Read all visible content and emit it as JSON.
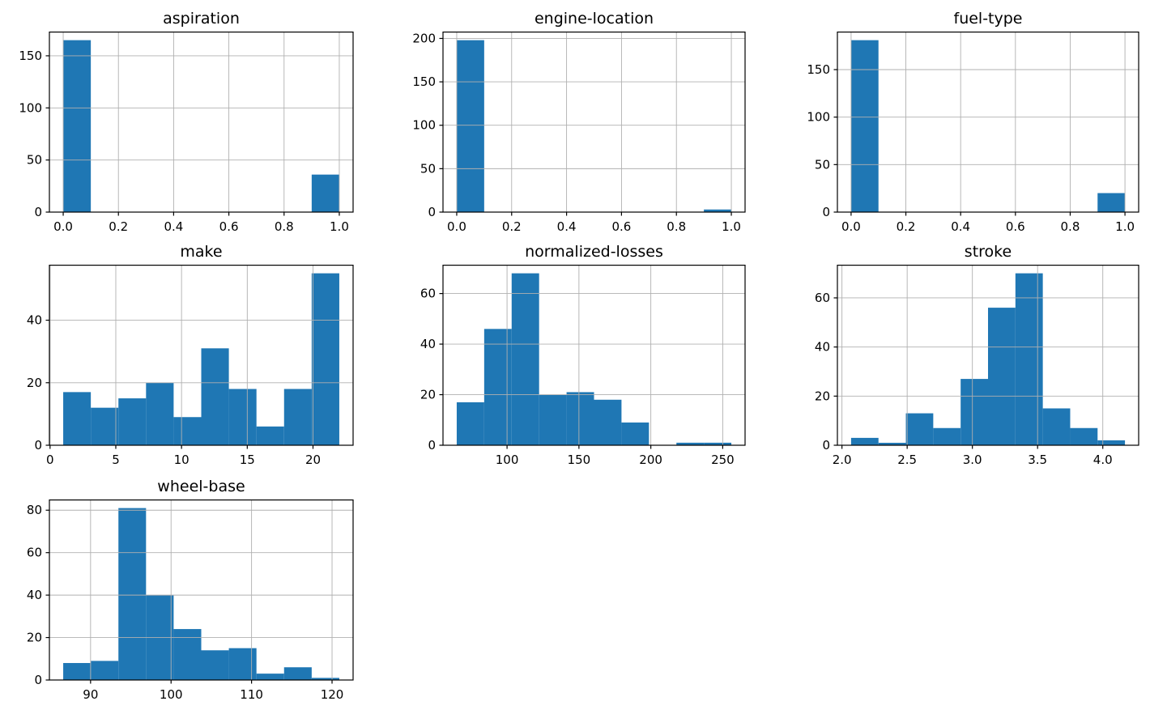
{
  "figure": {
    "background": "#ffffff",
    "bar_color": "#1f77b4",
    "grid_color": "#b0b0b0",
    "axis_color": "#000000",
    "text_color": "#000000"
  },
  "chart_data": [
    {
      "type": "histogram",
      "title": "aspiration",
      "bin_start": 0.0,
      "bin_width": 0.1,
      "counts": [
        165,
        0,
        0,
        0,
        0,
        0,
        0,
        0,
        0,
        36
      ],
      "xlim": [
        -0.05,
        1.05
      ],
      "ylim": [
        0,
        173.25
      ],
      "xticks": [
        0.0,
        0.2,
        0.4,
        0.6,
        0.8,
        1.0
      ],
      "xtick_labels": [
        "0.0",
        "0.2",
        "0.4",
        "0.6",
        "0.8",
        "1.0"
      ],
      "yticks": [
        0,
        50,
        100,
        150
      ],
      "ytick_labels": [
        "0",
        "50",
        "100",
        "150"
      ],
      "grid": true,
      "legend": "none"
    },
    {
      "type": "histogram",
      "title": "engine-location",
      "bin_start": 0.0,
      "bin_width": 0.1,
      "counts": [
        198,
        0,
        0,
        0,
        0,
        0,
        0,
        0,
        0,
        3
      ],
      "xlim": [
        -0.05,
        1.05
      ],
      "ylim": [
        0,
        207.9
      ],
      "xticks": [
        0.0,
        0.2,
        0.4,
        0.6,
        0.8,
        1.0
      ],
      "xtick_labels": [
        "0.0",
        "0.2",
        "0.4",
        "0.6",
        "0.8",
        "1.0"
      ],
      "yticks": [
        0,
        50,
        100,
        150,
        200
      ],
      "ytick_labels": [
        "0",
        "50",
        "100",
        "150",
        "200"
      ],
      "grid": true,
      "legend": "none"
    },
    {
      "type": "histogram",
      "title": "fuel-type",
      "bin_start": 0.0,
      "bin_width": 0.1,
      "counts": [
        181,
        0,
        0,
        0,
        0,
        0,
        0,
        0,
        0,
        20
      ],
      "xlim": [
        -0.05,
        1.05
      ],
      "ylim": [
        0,
        190.05
      ],
      "xticks": [
        0.0,
        0.2,
        0.4,
        0.6,
        0.8,
        1.0
      ],
      "xtick_labels": [
        "0.0",
        "0.2",
        "0.4",
        "0.6",
        "0.8",
        "1.0"
      ],
      "yticks": [
        0,
        50,
        100,
        150
      ],
      "ytick_labels": [
        "0",
        "50",
        "100",
        "150"
      ],
      "grid": true,
      "legend": "none"
    },
    {
      "type": "histogram",
      "title": "make",
      "bin_start": 1.0,
      "bin_width": 2.1,
      "counts": [
        17,
        12,
        15,
        20,
        9,
        31,
        18,
        6,
        18,
        55
      ],
      "xlim": [
        -0.05,
        23.05
      ],
      "ylim": [
        0,
        57.75
      ],
      "xticks": [
        0,
        5,
        10,
        15,
        20
      ],
      "xtick_labels": [
        "0",
        "5",
        "10",
        "15",
        "20"
      ],
      "yticks": [
        0,
        20,
        40
      ],
      "ytick_labels": [
        "0",
        "20",
        "40"
      ],
      "grid": true,
      "legend": "none"
    },
    {
      "type": "histogram",
      "title": "normalized-losses",
      "bin_start": 65.0,
      "bin_width": 19.1,
      "counts": [
        17,
        46,
        68,
        20,
        21,
        18,
        9,
        0,
        1,
        1
      ],
      "xlim": [
        55.45,
        265.55
      ],
      "ylim": [
        0,
        71.4
      ],
      "xticks": [
        100,
        150,
        200,
        250
      ],
      "xtick_labels": [
        "100",
        "150",
        "200",
        "250"
      ],
      "yticks": [
        0,
        20,
        40,
        60
      ],
      "ytick_labels": [
        "0",
        "20",
        "40",
        "60"
      ],
      "grid": true,
      "legend": "none"
    },
    {
      "type": "histogram",
      "title": "stroke",
      "bin_start": 2.07,
      "bin_width": 0.21,
      "counts": [
        3,
        1,
        13,
        7,
        27,
        56,
        70,
        15,
        7,
        2
      ],
      "xlim": [
        1.965,
        4.275
      ],
      "ylim": [
        0,
        73.5
      ],
      "xticks": [
        2.0,
        2.5,
        3.0,
        3.5,
        4.0
      ],
      "xtick_labels": [
        "2.0",
        "2.5",
        "3.0",
        "3.5",
        "4.0"
      ],
      "yticks": [
        0,
        20,
        40,
        60
      ],
      "ytick_labels": [
        "0",
        "20",
        "40",
        "60"
      ],
      "grid": true,
      "legend": "none"
    },
    {
      "type": "histogram",
      "title": "wheel-base",
      "bin_start": 86.6,
      "bin_width": 3.43,
      "counts": [
        8,
        9,
        81,
        40,
        24,
        14,
        15,
        3,
        6,
        1
      ],
      "xlim": [
        84.885,
        122.615
      ],
      "ylim": [
        0,
        85.05
      ],
      "xticks": [
        90,
        100,
        110,
        120
      ],
      "xtick_labels": [
        "90",
        "100",
        "110",
        "120"
      ],
      "yticks": [
        0,
        20,
        40,
        60,
        80
      ],
      "ytick_labels": [
        "0",
        "20",
        "40",
        "60",
        "80"
      ],
      "grid": true,
      "legend": "none"
    }
  ]
}
